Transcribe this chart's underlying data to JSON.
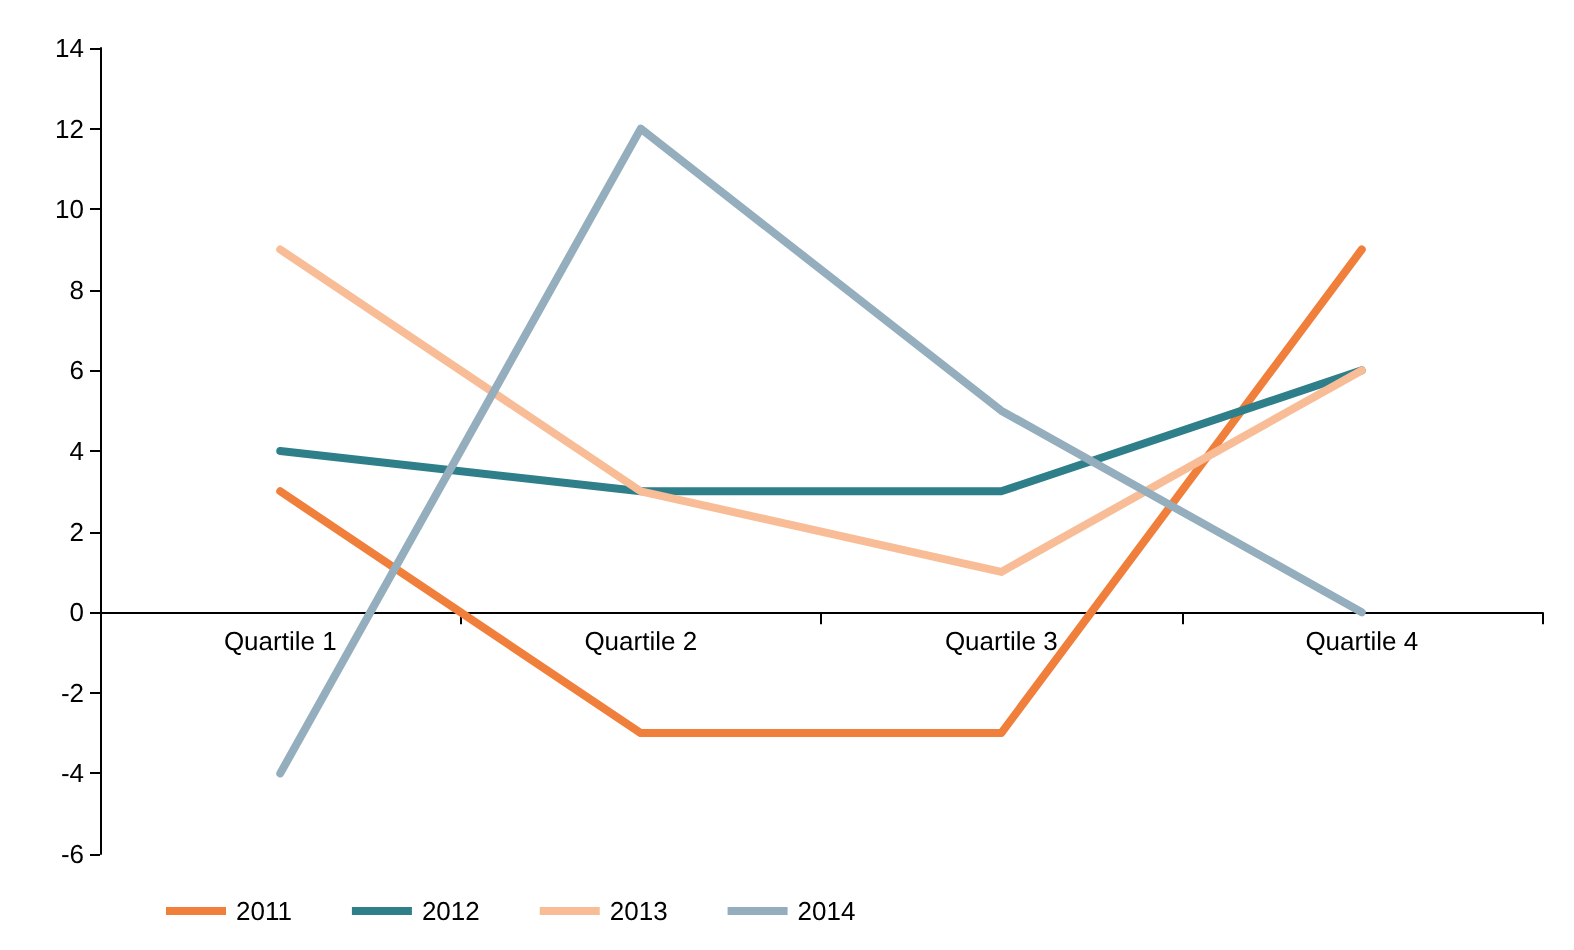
{
  "chart_data": {
    "type": "line",
    "categories": [
      "Quartile 1",
      "Quartile 2",
      "Quartile 3",
      "Quartile 4"
    ],
    "series": [
      {
        "name": "2011",
        "color": "#f07f3c",
        "values": [
          3,
          -3,
          -3,
          9
        ]
      },
      {
        "name": "2012",
        "color": "#2e7f8a",
        "values": [
          4,
          3,
          3,
          6
        ]
      },
      {
        "name": "2013",
        "color": "#f8bd96",
        "values": [
          9,
          3,
          1,
          6
        ]
      },
      {
        "name": "2014",
        "color": "#95aebd",
        "values": [
          -4,
          12,
          5,
          0
        ]
      }
    ],
    "ylim": [
      -6,
      14
    ],
    "yticks": [
      -6,
      -4,
      -2,
      0,
      2,
      4,
      6,
      8,
      10,
      12,
      14
    ],
    "grid": false,
    "legend": "bottom left",
    "marker": "none",
    "line_style": "solid"
  }
}
